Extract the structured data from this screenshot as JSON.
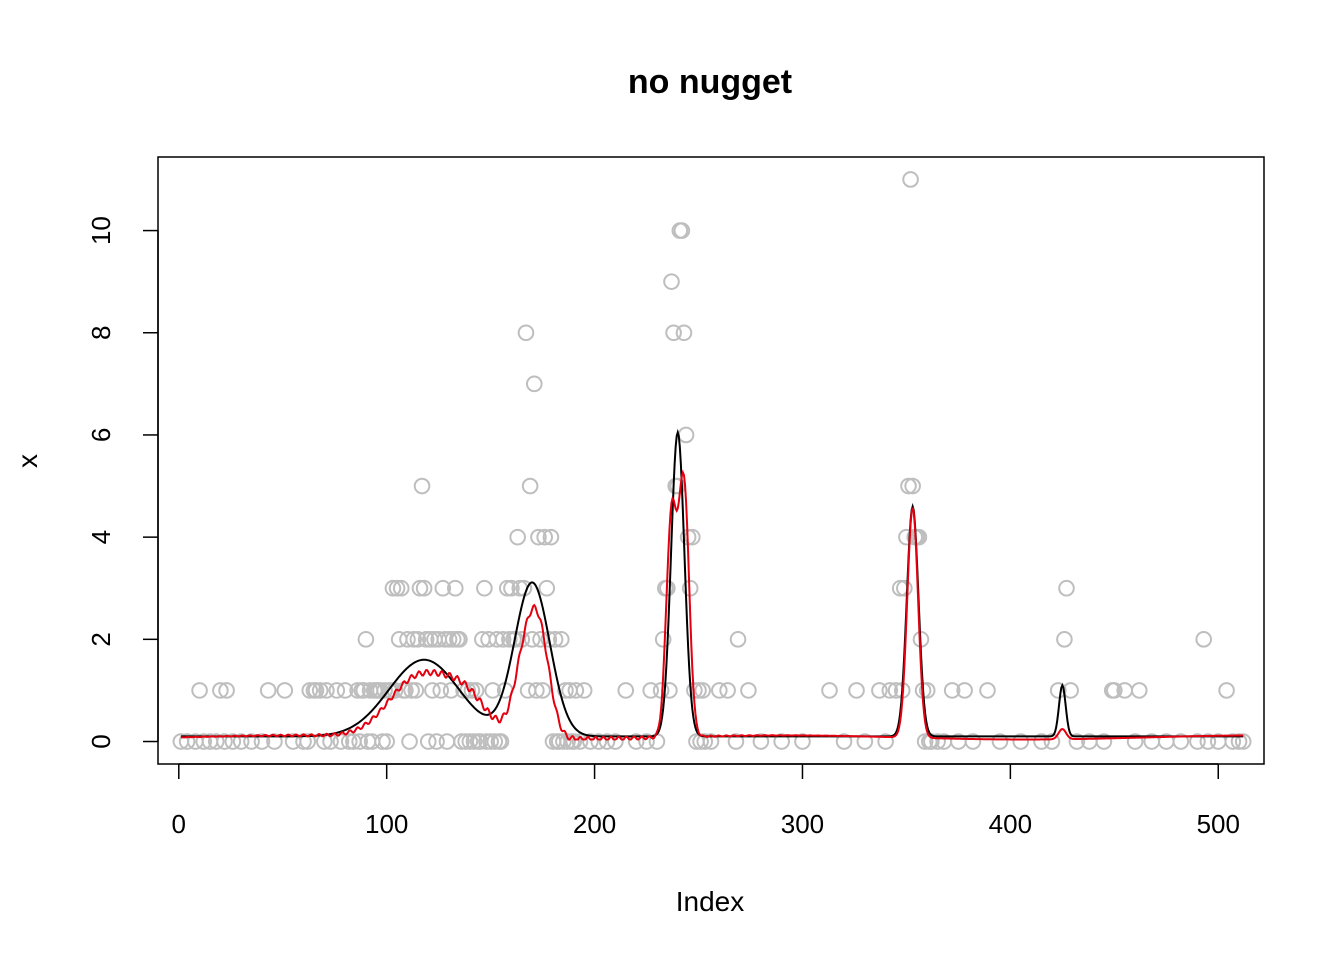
{
  "chart_data": {
    "type": "scatter",
    "title": "no nugget",
    "xlabel": "Index",
    "ylabel": "x",
    "xlim": [
      -10,
      522
    ],
    "ylim": [
      -0.44,
      11.44
    ],
    "x_ticks": [
      0,
      100,
      200,
      300,
      400,
      500
    ],
    "y_ticks": [
      0,
      2,
      4,
      6,
      8,
      10
    ],
    "grid": false,
    "legend": "none",
    "colors": {
      "points": "#bebebe",
      "true_curve": "#000000",
      "fit_curve": "#e3000f"
    },
    "points": [
      [
        1,
        0
      ],
      [
        4,
        0
      ],
      [
        8,
        0
      ],
      [
        10,
        1
      ],
      [
        12,
        0
      ],
      [
        15,
        0
      ],
      [
        18,
        0
      ],
      [
        20,
        1
      ],
      [
        22,
        0
      ],
      [
        23,
        1
      ],
      [
        26,
        0
      ],
      [
        30,
        0
      ],
      [
        35,
        0
      ],
      [
        40,
        0
      ],
      [
        43,
        1
      ],
      [
        46,
        0
      ],
      [
        51,
        1
      ],
      [
        55,
        0
      ],
      [
        60,
        0
      ],
      [
        62,
        0
      ],
      [
        63,
        1
      ],
      [
        65,
        1
      ],
      [
        66,
        1
      ],
      [
        68,
        1
      ],
      [
        70,
        0
      ],
      [
        71,
        1
      ],
      [
        73,
        0
      ],
      [
        76,
        1
      ],
      [
        78,
        0
      ],
      [
        80,
        1
      ],
      [
        82,
        0
      ],
      [
        84,
        0
      ],
      [
        86,
        1
      ],
      [
        87,
        0
      ],
      [
        88,
        1
      ],
      [
        89,
        1
      ],
      [
        90,
        2
      ],
      [
        91,
        0
      ],
      [
        92,
        1
      ],
      [
        93,
        0
      ],
      [
        94,
        1
      ],
      [
        95,
        1
      ],
      [
        96,
        1
      ],
      [
        97,
        1
      ],
      [
        98,
        0
      ],
      [
        99,
        1
      ],
      [
        100,
        0
      ],
      [
        101,
        1
      ],
      [
        102,
        1
      ],
      [
        103,
        3
      ],
      [
        104,
        1
      ],
      [
        105,
        3
      ],
      [
        106,
        2
      ],
      [
        107,
        3
      ],
      [
        108,
        1
      ],
      [
        109,
        1
      ],
      [
        110,
        2
      ],
      [
        111,
        0
      ],
      [
        112,
        1
      ],
      [
        113,
        2
      ],
      [
        114,
        1
      ],
      [
        115,
        2
      ],
      [
        116,
        3
      ],
      [
        117,
        5
      ],
      [
        118,
        3
      ],
      [
        119,
        2
      ],
      [
        120,
        0
      ],
      [
        121,
        2
      ],
      [
        122,
        1
      ],
      [
        123,
        2
      ],
      [
        124,
        0
      ],
      [
        125,
        2
      ],
      [
        126,
        1
      ],
      [
        127,
        3
      ],
      [
        128,
        2
      ],
      [
        129,
        0
      ],
      [
        130,
        2
      ],
      [
        131,
        1
      ],
      [
        132,
        2
      ],
      [
        133,
        3
      ],
      [
        134,
        2
      ],
      [
        135,
        2
      ],
      [
        136,
        0
      ],
      [
        137,
        1
      ],
      [
        138,
        0
      ],
      [
        139,
        1
      ],
      [
        140,
        0
      ],
      [
        141,
        1
      ],
      [
        142,
        0
      ],
      [
        143,
        1
      ],
      [
        144,
        0
      ],
      [
        145,
        0
      ],
      [
        146,
        2
      ],
      [
        147,
        3
      ],
      [
        148,
        0
      ],
      [
        149,
        2
      ],
      [
        150,
        0
      ],
      [
        151,
        1
      ],
      [
        152,
        0
      ],
      [
        153,
        2
      ],
      [
        154,
        0
      ],
      [
        155,
        0
      ],
      [
        156,
        2
      ],
      [
        157,
        1
      ],
      [
        158,
        3
      ],
      [
        159,
        2
      ],
      [
        160,
        3
      ],
      [
        161,
        2
      ],
      [
        162,
        2
      ],
      [
        163,
        4
      ],
      [
        164,
        3
      ],
      [
        165,
        2
      ],
      [
        166,
        3
      ],
      [
        167,
        8
      ],
      [
        168,
        1
      ],
      [
        169,
        5
      ],
      [
        170,
        2
      ],
      [
        171,
        7
      ],
      [
        172,
        1
      ],
      [
        173,
        4
      ],
      [
        174,
        2
      ],
      [
        175,
        1
      ],
      [
        176,
        4
      ],
      [
        177,
        3
      ],
      [
        178,
        2
      ],
      [
        179,
        4
      ],
      [
        180,
        0
      ],
      [
        181,
        2
      ],
      [
        182,
        0
      ],
      [
        183,
        0
      ],
      [
        184,
        2
      ],
      [
        185,
        0
      ],
      [
        186,
        1
      ],
      [
        187,
        0
      ],
      [
        188,
        1
      ],
      [
        189,
        0
      ],
      [
        190,
        0
      ],
      [
        191,
        1
      ],
      [
        193,
        0
      ],
      [
        195,
        1
      ],
      [
        198,
        0
      ],
      [
        202,
        0
      ],
      [
        206,
        0
      ],
      [
        210,
        0
      ],
      [
        215,
        1
      ],
      [
        220,
        0
      ],
      [
        225,
        0
      ],
      [
        227,
        1
      ],
      [
        230,
        0
      ],
      [
        232,
        1
      ],
      [
        233,
        2
      ],
      [
        234,
        3
      ],
      [
        235,
        3
      ],
      [
        236,
        1
      ],
      [
        237,
        9
      ],
      [
        238,
        8
      ],
      [
        239,
        5
      ],
      [
        240,
        5
      ],
      [
        241,
        10
      ],
      [
        242,
        10
      ],
      [
        243,
        8
      ],
      [
        244,
        6
      ],
      [
        245,
        4
      ],
      [
        246,
        3
      ],
      [
        247,
        4
      ],
      [
        248,
        1
      ],
      [
        249,
        0
      ],
      [
        250,
        1
      ],
      [
        251,
        0
      ],
      [
        252,
        1
      ],
      [
        253,
        0
      ],
      [
        256,
        0
      ],
      [
        260,
        1
      ],
      [
        264,
        1
      ],
      [
        268,
        0
      ],
      [
        269,
        2
      ],
      [
        274,
        1
      ],
      [
        280,
        0
      ],
      [
        290,
        0
      ],
      [
        300,
        0
      ],
      [
        313,
        1
      ],
      [
        320,
        0
      ],
      [
        326,
        1
      ],
      [
        330,
        0
      ],
      [
        337,
        1
      ],
      [
        340,
        0
      ],
      [
        342,
        1
      ],
      [
        345,
        1
      ],
      [
        347,
        3
      ],
      [
        348,
        1
      ],
      [
        349,
        3
      ],
      [
        350,
        4
      ],
      [
        351,
        5
      ],
      [
        352,
        11
      ],
      [
        353,
        5
      ],
      [
        354,
        4
      ],
      [
        355,
        4
      ],
      [
        356,
        4
      ],
      [
        357,
        2
      ],
      [
        358,
        1
      ],
      [
        359,
        0
      ],
      [
        360,
        1
      ],
      [
        361,
        0
      ],
      [
        362,
        0
      ],
      [
        365,
        0
      ],
      [
        368,
        0
      ],
      [
        372,
        1
      ],
      [
        375,
        0
      ],
      [
        378,
        1
      ],
      [
        382,
        0
      ],
      [
        389,
        1
      ],
      [
        395,
        0
      ],
      [
        405,
        0
      ],
      [
        415,
        0
      ],
      [
        420,
        0
      ],
      [
        423,
        1
      ],
      [
        426,
        2
      ],
      [
        427,
        3
      ],
      [
        429,
        1
      ],
      [
        432,
        0
      ],
      [
        438,
        0
      ],
      [
        445,
        0
      ],
      [
        449,
        1
      ],
      [
        450,
        1
      ],
      [
        455,
        1
      ],
      [
        460,
        0
      ],
      [
        462,
        1
      ],
      [
        468,
        0
      ],
      [
        475,
        0
      ],
      [
        482,
        0
      ],
      [
        490,
        0
      ],
      [
        493,
        2
      ],
      [
        495,
        0
      ],
      [
        500,
        0
      ],
      [
        504,
        1
      ],
      [
        507,
        0
      ],
      [
        510,
        0
      ],
      [
        512,
        0
      ]
    ]
  }
}
